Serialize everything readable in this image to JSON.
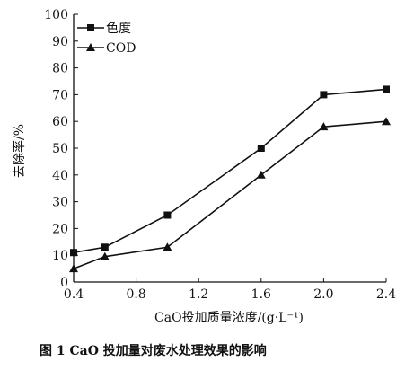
{
  "chart_data": {
    "type": "line",
    "x": [
      0.4,
      0.6,
      1.0,
      1.6,
      2.0,
      2.4
    ],
    "series": [
      {
        "name": "色度",
        "marker": "square",
        "values": [
          11,
          13,
          25,
          50,
          70,
          72
        ]
      },
      {
        "name": "COD",
        "marker": "triangle",
        "values": [
          5,
          9.5,
          13,
          40,
          58,
          60
        ]
      }
    ],
    "xlabel": "CaO投加质量浓度/(g·L⁻¹)",
    "ylabel": "去除率/%",
    "xlim": [
      0.4,
      2.4
    ],
    "ylim": [
      0,
      100
    ],
    "xticks": [
      0.4,
      0.8,
      1.2,
      1.6,
      2.0,
      2.4
    ],
    "xtick_labels": [
      "0.4",
      "0.8",
      "1.2",
      "1.6",
      "2.0",
      "2.4"
    ],
    "yticks": [
      0,
      10,
      20,
      30,
      40,
      50,
      60,
      70,
      80,
      90,
      100
    ],
    "legend_position": "top-left",
    "grid": false,
    "line_color": "#111111"
  },
  "caption": "图 1   CaO 投加量对废水处理效果的影响"
}
